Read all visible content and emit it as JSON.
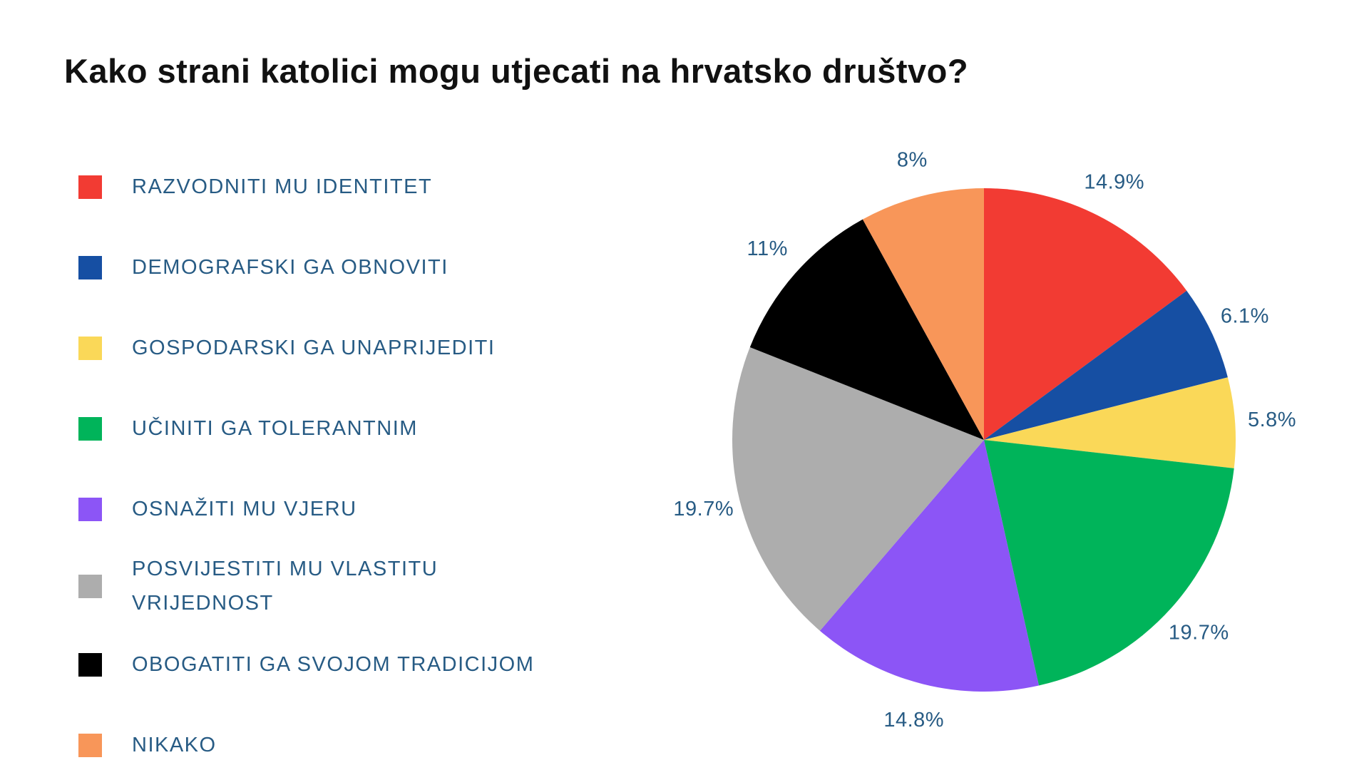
{
  "title": "Kako strani katolici mogu utjecati na hrvatsko društvo?",
  "chart_data": {
    "type": "pie",
    "title": "Kako strani katolici mogu utjecati na hrvatsko društvo?",
    "categories": [
      "RAZVODNITI MU IDENTITET",
      "DEMOGRAFSKI GA OBNOVITI",
      "GOSPODARSKI GA UNAPRIJEDITI",
      "UČINITI GA TOLERANTNIM",
      "OSNAŽITI MU VJERU",
      "POSVIJESTITI MU VLASTITU VRIJEDNOST",
      "OBOGATITI GA SVOJOM TRADICIJOM",
      "NIKAKO"
    ],
    "values": [
      14.9,
      6.1,
      5.8,
      19.7,
      14.8,
      19.7,
      11,
      8
    ],
    "slice_labels": [
      "14.9%",
      "6.1%",
      "5.8%",
      "19.7%",
      "14.8%",
      "19.7%",
      "11%",
      "8%"
    ],
    "colors": [
      "#F23B33",
      "#164FA3",
      "#FAD858",
      "#00B45A",
      "#8C55F6",
      "#ADADAD",
      "#000000",
      "#F89659"
    ],
    "start_angle_deg": 0,
    "direction": "clockwise",
    "legend_position": "left",
    "label_color": "#275B84",
    "legend_text_color": "#275B84",
    "title_color": "#111111",
    "background_color": "#FFFFFF"
  }
}
